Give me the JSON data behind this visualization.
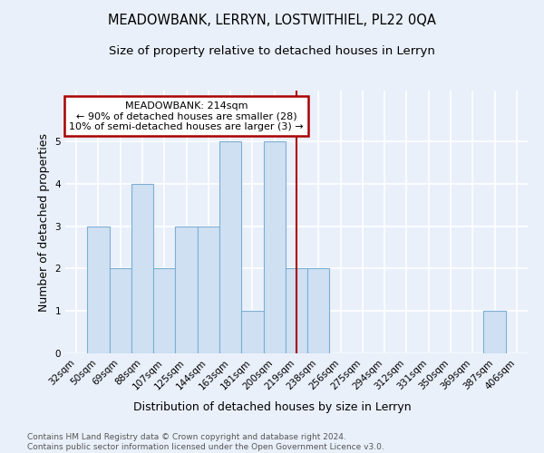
{
  "title": "MEADOWBANK, LERRYN, LOSTWITHIEL, PL22 0QA",
  "subtitle": "Size of property relative to detached houses in Lerryn",
  "xlabel": "Distribution of detached houses by size in Lerryn",
  "ylabel": "Number of detached properties",
  "categories": [
    "32sqm",
    "50sqm",
    "69sqm",
    "88sqm",
    "107sqm",
    "125sqm",
    "144sqm",
    "163sqm",
    "181sqm",
    "200sqm",
    "219sqm",
    "238sqm",
    "256sqm",
    "275sqm",
    "294sqm",
    "312sqm",
    "331sqm",
    "350sqm",
    "369sqm",
    "387sqm",
    "406sqm"
  ],
  "values": [
    0,
    3,
    2,
    4,
    2,
    3,
    3,
    5,
    1,
    5,
    2,
    2,
    0,
    0,
    0,
    0,
    0,
    0,
    0,
    1,
    0
  ],
  "bar_color": "#cfe0f3",
  "bar_edge_color": "#7bafd4",
  "vline_x_index": 10,
  "vline_color": "#aa0000",
  "annotation_title": "MEADOWBANK: 214sqm",
  "annotation_line1": "← 90% of detached houses are smaller (28)",
  "annotation_line2": "10% of semi-detached houses are larger (3) →",
  "annotation_box_color": "#aa0000",
  "ylim": [
    0,
    6.2
  ],
  "yticks": [
    0,
    1,
    2,
    3,
    4,
    5,
    6
  ],
  "footer_line1": "Contains HM Land Registry data © Crown copyright and database right 2024.",
  "footer_line2": "Contains public sector information licensed under the Open Government Licence v3.0.",
  "bg_color": "#eaf0fa",
  "plot_bg_color": "#eaf0fa",
  "grid_color": "#ffffff",
  "title_fontsize": 10.5,
  "subtitle_fontsize": 9.5,
  "axis_label_fontsize": 9,
  "tick_fontsize": 7.5,
  "footer_fontsize": 6.5
}
